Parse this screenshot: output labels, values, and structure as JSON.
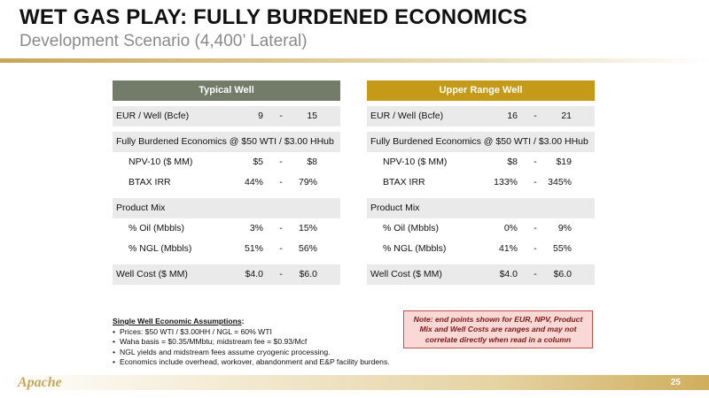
{
  "header": {
    "title": "WET GAS PLAY: FULLY BURDENED ECONOMICS",
    "subtitle": "Development Scenario (4,400’ Lateral)"
  },
  "typical": {
    "header": "Typical Well",
    "eur_label": "EUR / Well (Bcfe)",
    "eur_low": "9",
    "eur_high": "15",
    "econ_label": "Fully Burdened Economics @ $50 WTI / $3.00 HHub",
    "npv_label": "NPV-10 ($ MM)",
    "npv_low": "$5",
    "npv_high": "$8",
    "irr_label": "BTAX IRR",
    "irr_low": "44%",
    "irr_high": "79%",
    "mix_label": "Product Mix",
    "oil_label": "% Oil (Mbbls)",
    "oil_low": "3%",
    "oil_high": "15%",
    "ngl_label": "% NGL (Mbbls)",
    "ngl_low": "51%",
    "ngl_high": "56%",
    "cost_label": "Well Cost ($ MM)",
    "cost_low": "$4.0",
    "cost_high": "$6.0"
  },
  "upper": {
    "header": "Upper Range Well",
    "eur_label": "EUR / Well (Bcfe)",
    "eur_low": "16",
    "eur_high": "21",
    "econ_label": "Fully Burdened Economics @ $50 WTI / $3.00 HHub",
    "npv_label": "NPV-10 ($ MM)",
    "npv_low": "$8",
    "npv_high": "$19",
    "irr_label": "BTAX IRR",
    "irr_low": "133%",
    "irr_high": "345%",
    "mix_label": "Product Mix",
    "oil_label": "% Oil (Mbbls)",
    "oil_low": "0%",
    "oil_high": "9%",
    "ngl_label": "% NGL (Mbbls)",
    "ngl_low": "41%",
    "ngl_high": "55%",
    "cost_label": "Well Cost ($ MM)",
    "cost_low": "$4.0",
    "cost_high": "$6.0"
  },
  "dash": "-",
  "assumptions": {
    "heading": "Single Well Economic Assumptions",
    "colon": ":",
    "items": [
      "Prices: $50 WTI / $3.00HH / NGL = 60% WTI",
      "Waha basis = $0.35/MMbtu; midstream fee = $0.93/Mcf",
      "NGL yields and midstream fees assume cryogenic processing.",
      "Economics include overhead, workover, abandonment and E&P facility burdens."
    ]
  },
  "note": "Note: end points shown for EUR, NPV, Product Mix and Well Costs are ranges and may not correlate directly when read in a column",
  "footer": {
    "logo_text": "Apache",
    "page_number": "25"
  },
  "colors": {
    "typical_header": "#737c68",
    "upper_header": "#c49a18",
    "gold": "#c8a657",
    "note_bg": "#f9d8d6",
    "note_border": "#c0504d"
  }
}
